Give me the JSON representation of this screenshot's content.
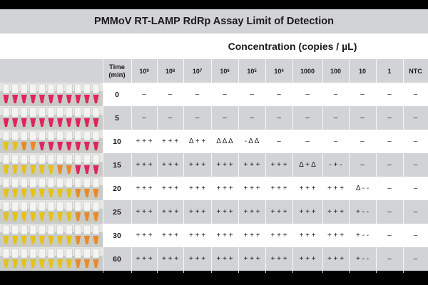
{
  "title": "PMMoV RT-LAMP RdRp Assay Limit of Detection",
  "concentration_title": "Concentration (copies / µL)",
  "time_header": [
    "Time",
    "(min)"
  ],
  "columns": [
    {
      "base": "10",
      "exp": "9"
    },
    {
      "base": "10",
      "exp": "8"
    },
    {
      "base": "10",
      "exp": "7"
    },
    {
      "base": "10",
      "exp": "6"
    },
    {
      "base": "10",
      "exp": "5"
    },
    {
      "base": "10",
      "exp": "4"
    },
    {
      "base": "1000",
      "exp": ""
    },
    {
      "base": "100",
      "exp": ""
    },
    {
      "base": "10",
      "exp": ""
    },
    {
      "base": "1",
      "exp": ""
    },
    {
      "base": "NTC",
      "exp": ""
    }
  ],
  "rows": [
    {
      "time": "0",
      "photo": "pink",
      "cells": [
        "–",
        "–",
        "–",
        "–",
        "–",
        "–",
        "–",
        "–",
        "–",
        "–",
        "–"
      ]
    },
    {
      "time": "5",
      "photo": "pink",
      "cells": [
        "–",
        "–",
        "–",
        "–",
        "–",
        "–",
        "–",
        "–",
        "–",
        "–",
        "–"
      ]
    },
    {
      "time": "10",
      "photo": "mixed1",
      "cells": [
        "+ + +",
        "+ + +",
        "Δ + +",
        "Δ Δ Δ",
        "- Δ Δ",
        "–",
        "–",
        "–",
        "–",
        "–",
        "–"
      ]
    },
    {
      "time": "15",
      "photo": "mixed2",
      "cells": [
        "+ + +",
        "+ + +",
        "+ + +",
        "+ + +",
        "+ + +",
        "+ + +",
        "Δ + Δ",
        "- + -",
        "–",
        "–",
        "–"
      ]
    },
    {
      "time": "20",
      "photo": "yellow",
      "cells": [
        "+ + +",
        "+ + +",
        "+ + +",
        "+ + +",
        "+ + +",
        "+ + +",
        "+ + +",
        "+ + +",
        "Δ - -",
        "–",
        "–"
      ]
    },
    {
      "time": "25",
      "photo": "yellow",
      "cells": [
        "+ + +",
        "+ + +",
        "+ + +",
        "+ + +",
        "+ + +",
        "+ + +",
        "+ + +",
        "+ + +",
        "+ - -",
        "–",
        "–"
      ]
    },
    {
      "time": "30",
      "photo": "yellow",
      "cells": [
        "+ + +",
        "+ + +",
        "+ + +",
        "+ + +",
        "+ + +",
        "+ + +",
        "+ + +",
        "+ + +",
        "+ - -",
        "–",
        "–"
      ]
    },
    {
      "time": "60",
      "photo": "yellow",
      "cells": [
        "+ + +",
        "+ + +",
        "+ + +",
        "+ + +",
        "+ + +",
        "+ + +",
        "+ + +",
        "+ + +",
        "+ - -",
        "–",
        "–"
      ]
    }
  ],
  "colors": {
    "band_gray": "#d2d3d6",
    "band_white": "#ffffff",
    "tube_pink": "#e0245e",
    "tube_yellow": "#e4c21a",
    "tube_orange": "#e88a2a"
  }
}
